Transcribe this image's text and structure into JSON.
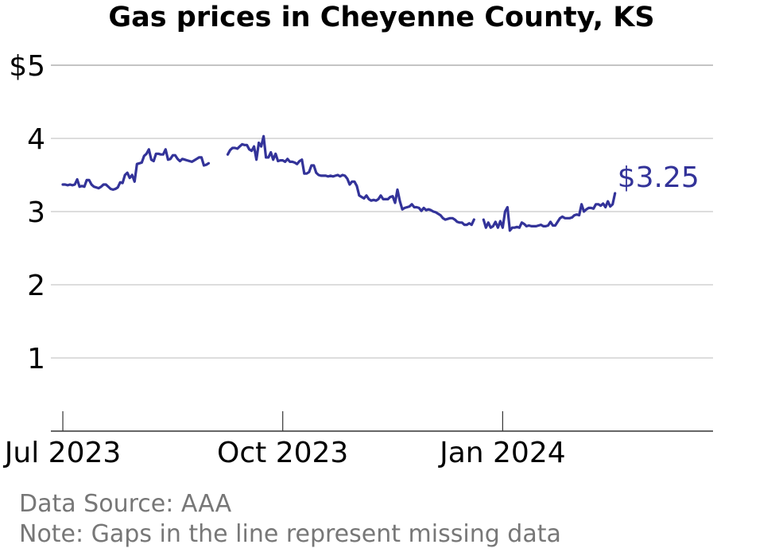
{
  "colors": {
    "line": "#333399",
    "grid": "#bbbbbb",
    "axis": "#333333",
    "text": "#000000",
    "footer": "#777777"
  },
  "footer": {
    "source": "Data Source: AAA",
    "note": "Note: Gaps in the line represent missing data"
  },
  "chart_data": {
    "type": "line",
    "title": "Gas prices in Cheyenne County, KS",
    "xlabel": "",
    "ylabel": "",
    "ylim": [
      0,
      5
    ],
    "xlim": [
      "2023-06-26",
      "2024-03-29"
    ],
    "grid": true,
    "legend": "none",
    "y_ticks": [
      {
        "value": 1,
        "label": "1"
      },
      {
        "value": 2,
        "label": "2"
      },
      {
        "value": 3,
        "label": "3"
      },
      {
        "value": 4,
        "label": "4"
      },
      {
        "value": 5,
        "label": "$5"
      }
    ],
    "x_ticks": [
      {
        "date": "2023-07-01",
        "label": "Jul 2023"
      },
      {
        "date": "2023-10-01",
        "label": "Oct 2023"
      },
      {
        "date": "2024-01-01",
        "label": "Jan 2024"
      }
    ],
    "end_label": "$3.25",
    "series": [
      {
        "segments": [
          [
            [
              "2023-07-01",
              3.37
            ],
            [
              "2023-07-02",
              3.37
            ],
            [
              "2023-07-03",
              3.36
            ],
            [
              "2023-07-04",
              3.37
            ],
            [
              "2023-07-05",
              3.36
            ],
            [
              "2023-07-06",
              3.37
            ],
            [
              "2023-07-07",
              3.44
            ],
            [
              "2023-07-08",
              3.34
            ],
            [
              "2023-07-09",
              3.35
            ],
            [
              "2023-07-10",
              3.34
            ],
            [
              "2023-07-11",
              3.43
            ],
            [
              "2023-07-12",
              3.43
            ],
            [
              "2023-07-13",
              3.37
            ],
            [
              "2023-07-14",
              3.34
            ],
            [
              "2023-07-15",
              3.33
            ],
            [
              "2023-07-16",
              3.32
            ],
            [
              "2023-07-17",
              3.34
            ],
            [
              "2023-07-18",
              3.37
            ],
            [
              "2023-07-19",
              3.37
            ],
            [
              "2023-07-20",
              3.34
            ],
            [
              "2023-07-21",
              3.31
            ],
            [
              "2023-07-22",
              3.3
            ],
            [
              "2023-07-23",
              3.31
            ],
            [
              "2023-07-24",
              3.33
            ],
            [
              "2023-07-25",
              3.4
            ],
            [
              "2023-07-26",
              3.39
            ],
            [
              "2023-07-27",
              3.5
            ],
            [
              "2023-07-28",
              3.53
            ],
            [
              "2023-07-29",
              3.46
            ],
            [
              "2023-07-30",
              3.5
            ],
            [
              "2023-07-31",
              3.41
            ],
            [
              "2023-08-01",
              3.65
            ],
            [
              "2023-08-02",
              3.66
            ],
            [
              "2023-08-03",
              3.67
            ],
            [
              "2023-08-04",
              3.76
            ],
            [
              "2023-08-05",
              3.79
            ],
            [
              "2023-08-06",
              3.85
            ],
            [
              "2023-08-07",
              3.71
            ],
            [
              "2023-08-08",
              3.69
            ],
            [
              "2023-08-09",
              3.79
            ],
            [
              "2023-08-10",
              3.79
            ],
            [
              "2023-08-11",
              3.78
            ],
            [
              "2023-08-12",
              3.78
            ],
            [
              "2023-08-13",
              3.85
            ],
            [
              "2023-08-14",
              3.71
            ],
            [
              "2023-08-15",
              3.72
            ],
            [
              "2023-08-16",
              3.77
            ],
            [
              "2023-08-17",
              3.77
            ],
            [
              "2023-08-18",
              3.72
            ],
            [
              "2023-08-19",
              3.69
            ],
            [
              "2023-08-20",
              3.72
            ],
            [
              "2023-08-21",
              3.71
            ],
            [
              "2023-08-22",
              3.7
            ],
            [
              "2023-08-23",
              3.69
            ],
            [
              "2023-08-24",
              3.68
            ],
            [
              "2023-08-25",
              3.7
            ],
            [
              "2023-08-26",
              3.72
            ],
            [
              "2023-08-27",
              3.74
            ],
            [
              "2023-08-28",
              3.74
            ],
            [
              "2023-08-29",
              3.63
            ],
            [
              "2023-08-30",
              3.64
            ],
            [
              "2023-08-31",
              3.66
            ]
          ],
          [
            [
              "2023-09-08",
              3.78
            ],
            [
              "2023-09-09",
              3.84
            ],
            [
              "2023-09-10",
              3.87
            ],
            [
              "2023-09-11",
              3.87
            ],
            [
              "2023-09-12",
              3.86
            ],
            [
              "2023-09-13",
              3.89
            ],
            [
              "2023-09-14",
              3.92
            ],
            [
              "2023-09-15",
              3.91
            ],
            [
              "2023-09-16",
              3.91
            ],
            [
              "2023-09-17",
              3.85
            ],
            [
              "2023-09-18",
              3.83
            ],
            [
              "2023-09-19",
              3.89
            ],
            [
              "2023-09-20",
              3.71
            ],
            [
              "2023-09-21",
              3.94
            ],
            [
              "2023-09-22",
              3.89
            ],
            [
              "2023-09-23",
              4.03
            ],
            [
              "2023-09-24",
              3.74
            ],
            [
              "2023-09-25",
              3.74
            ],
            [
              "2023-09-26",
              3.81
            ],
            [
              "2023-09-27",
              3.71
            ],
            [
              "2023-09-28",
              3.79
            ],
            [
              "2023-09-29",
              3.69
            ],
            [
              "2023-09-30",
              3.7
            ],
            [
              "2023-10-01",
              3.7
            ],
            [
              "2023-10-02",
              3.68
            ],
            [
              "2023-10-03",
              3.72
            ],
            [
              "2023-10-04",
              3.68
            ],
            [
              "2023-10-05",
              3.68
            ],
            [
              "2023-10-06",
              3.67
            ],
            [
              "2023-10-07",
              3.65
            ],
            [
              "2023-10-08",
              3.69
            ],
            [
              "2023-10-09",
              3.71
            ],
            [
              "2023-10-10",
              3.52
            ],
            [
              "2023-10-11",
              3.52
            ],
            [
              "2023-10-12",
              3.54
            ],
            [
              "2023-10-13",
              3.63
            ],
            [
              "2023-10-14",
              3.63
            ],
            [
              "2023-10-15",
              3.53
            ],
            [
              "2023-10-16",
              3.5
            ],
            [
              "2023-10-17",
              3.49
            ],
            [
              "2023-10-18",
              3.49
            ],
            [
              "2023-10-19",
              3.49
            ],
            [
              "2023-10-20",
              3.48
            ],
            [
              "2023-10-21",
              3.49
            ],
            [
              "2023-10-22",
              3.48
            ],
            [
              "2023-10-23",
              3.49
            ],
            [
              "2023-10-24",
              3.5
            ],
            [
              "2023-10-25",
              3.48
            ],
            [
              "2023-10-26",
              3.5
            ],
            [
              "2023-10-27",
              3.49
            ],
            [
              "2023-10-28",
              3.45
            ],
            [
              "2023-10-29",
              3.37
            ],
            [
              "2023-10-30",
              3.41
            ],
            [
              "2023-10-31",
              3.41
            ],
            [
              "2023-11-01",
              3.35
            ],
            [
              "2023-11-02",
              3.22
            ],
            [
              "2023-11-03",
              3.2
            ],
            [
              "2023-11-04",
              3.18
            ],
            [
              "2023-11-05",
              3.22
            ],
            [
              "2023-11-06",
              3.17
            ],
            [
              "2023-11-07",
              3.15
            ],
            [
              "2023-11-08",
              3.16
            ],
            [
              "2023-11-09",
              3.15
            ],
            [
              "2023-11-10",
              3.17
            ],
            [
              "2023-11-11",
              3.22
            ],
            [
              "2023-11-12",
              3.17
            ],
            [
              "2023-11-13",
              3.17
            ],
            [
              "2023-11-14",
              3.17
            ],
            [
              "2023-11-15",
              3.2
            ],
            [
              "2023-11-16",
              3.21
            ],
            [
              "2023-11-17",
              3.12
            ],
            [
              "2023-11-18",
              3.3
            ],
            [
              "2023-11-19",
              3.14
            ],
            [
              "2023-11-20",
              3.03
            ],
            [
              "2023-11-21",
              3.05
            ],
            [
              "2023-11-22",
              3.06
            ],
            [
              "2023-11-23",
              3.07
            ],
            [
              "2023-11-24",
              3.1
            ],
            [
              "2023-11-25",
              3.06
            ],
            [
              "2023-11-26",
              3.06
            ],
            [
              "2023-11-27",
              3.05
            ],
            [
              "2023-11-28",
              3.01
            ],
            [
              "2023-11-29",
              3.05
            ],
            [
              "2023-11-30",
              3.02
            ],
            [
              "2023-12-01",
              3.03
            ],
            [
              "2023-12-02",
              3.02
            ],
            [
              "2023-12-03",
              3.0
            ],
            [
              "2023-12-04",
              2.99
            ],
            [
              "2023-12-05",
              2.97
            ],
            [
              "2023-12-06",
              2.95
            ],
            [
              "2023-12-07",
              2.91
            ],
            [
              "2023-12-08",
              2.89
            ],
            [
              "2023-12-09",
              2.9
            ],
            [
              "2023-12-10",
              2.91
            ],
            [
              "2023-12-11",
              2.91
            ],
            [
              "2023-12-12",
              2.89
            ],
            [
              "2023-12-13",
              2.86
            ],
            [
              "2023-12-14",
              2.85
            ],
            [
              "2023-12-15",
              2.85
            ],
            [
              "2023-12-16",
              2.82
            ],
            [
              "2023-12-17",
              2.82
            ],
            [
              "2023-12-18",
              2.84
            ],
            [
              "2023-12-19",
              2.82
            ],
            [
              "2023-12-20",
              2.89
            ]
          ],
          [
            [
              "2023-12-24",
              2.89
            ],
            [
              "2023-12-25",
              2.78
            ],
            [
              "2023-12-26",
              2.85
            ],
            [
              "2023-12-27",
              2.78
            ],
            [
              "2023-12-28",
              2.8
            ],
            [
              "2023-12-29",
              2.86
            ],
            [
              "2023-12-30",
              2.78
            ],
            [
              "2023-12-31",
              2.87
            ],
            [
              "2024-01-01",
              2.78
            ],
            [
              "2024-01-02",
              3.0
            ],
            [
              "2024-01-03",
              3.06
            ],
            [
              "2024-01-04",
              2.74
            ],
            [
              "2024-01-05",
              2.78
            ],
            [
              "2024-01-06",
              2.78
            ],
            [
              "2024-01-07",
              2.79
            ],
            [
              "2024-01-08",
              2.78
            ],
            [
              "2024-01-09",
              2.85
            ],
            [
              "2024-01-10",
              2.83
            ],
            [
              "2024-01-11",
              2.8
            ],
            [
              "2024-01-12",
              2.81
            ],
            [
              "2024-01-13",
              2.8
            ],
            [
              "2024-01-14",
              2.8
            ],
            [
              "2024-01-15",
              2.8
            ],
            [
              "2024-01-16",
              2.81
            ],
            [
              "2024-01-17",
              2.82
            ],
            [
              "2024-01-18",
              2.8
            ],
            [
              "2024-01-19",
              2.8
            ],
            [
              "2024-01-20",
              2.81
            ],
            [
              "2024-01-21",
              2.86
            ],
            [
              "2024-01-22",
              2.81
            ],
            [
              "2024-01-23",
              2.81
            ],
            [
              "2024-01-24",
              2.86
            ],
            [
              "2024-01-25",
              2.91
            ],
            [
              "2024-01-26",
              2.93
            ],
            [
              "2024-01-27",
              2.91
            ],
            [
              "2024-01-28",
              2.91
            ],
            [
              "2024-01-29",
              2.91
            ],
            [
              "2024-01-30",
              2.92
            ],
            [
              "2024-01-31",
              2.95
            ],
            [
              "2024-02-01",
              2.96
            ],
            [
              "2024-02-02",
              2.95
            ],
            [
              "2024-02-03",
              3.1
            ],
            [
              "2024-02-04",
              3.0
            ],
            [
              "2024-02-05",
              3.03
            ],
            [
              "2024-02-06",
              3.05
            ],
            [
              "2024-02-07",
              3.05
            ],
            [
              "2024-02-08",
              3.04
            ],
            [
              "2024-02-09",
              3.1
            ],
            [
              "2024-02-10",
              3.1
            ],
            [
              "2024-02-11",
              3.08
            ],
            [
              "2024-02-12",
              3.11
            ],
            [
              "2024-02-13",
              3.06
            ],
            [
              "2024-02-14",
              3.14
            ],
            [
              "2024-02-15",
              3.07
            ],
            [
              "2024-02-16",
              3.1
            ],
            [
              "2024-02-17",
              3.25
            ]
          ]
        ]
      }
    ]
  }
}
